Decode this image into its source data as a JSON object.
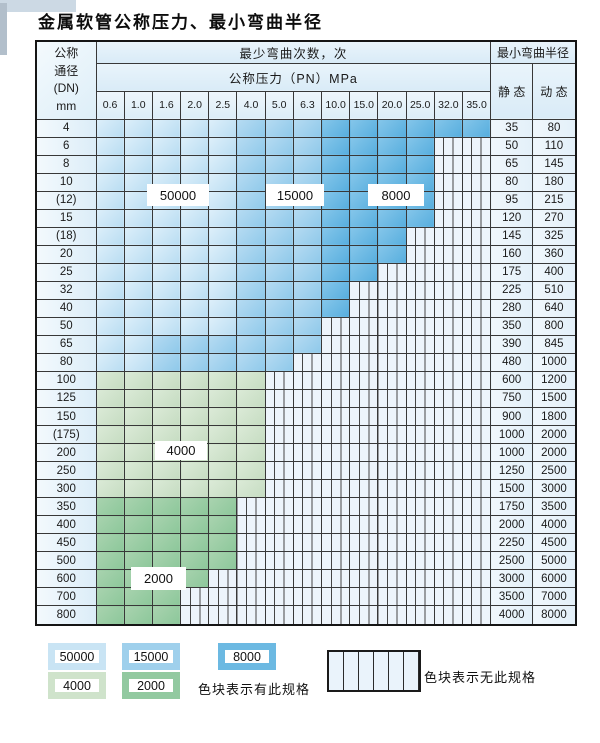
{
  "title": "金属软管公称压力、最小弯曲半径",
  "table": {
    "corner_lines": [
      "公称",
      "通径",
      "(DN)",
      "mm"
    ],
    "bend_cycles_header": "最少弯曲次数，次",
    "pressure_header": "公称压力（PN）MPa",
    "radius_header": "最小弯曲半径",
    "static_header": "静 态",
    "dynamic_header": "动 态",
    "pressures": [
      "0.6",
      "1.0",
      "1.6",
      "2.0",
      "2.5",
      "4.0",
      "5.0",
      "6.3",
      "10.0",
      "15.0",
      "20.0",
      "25.0",
      "32.0",
      "35.0"
    ],
    "rows": [
      {
        "dn": "4",
        "ratings": [
          "50000",
          "50000",
          "50000",
          "50000",
          "50000",
          "15000",
          "15000",
          "15000",
          "8000",
          "8000",
          "8000",
          "8000",
          "8000",
          "8000"
        ],
        "static": "35",
        "dynamic": "80"
      },
      {
        "dn": "6",
        "ratings": [
          "50000",
          "50000",
          "50000",
          "50000",
          "50000",
          "15000",
          "15000",
          "15000",
          "8000",
          "8000",
          "8000",
          "8000",
          "none",
          "none"
        ],
        "static": "50",
        "dynamic": "110"
      },
      {
        "dn": "8",
        "ratings": [
          "50000",
          "50000",
          "50000",
          "50000",
          "50000",
          "15000",
          "15000",
          "15000",
          "8000",
          "8000",
          "8000",
          "8000",
          "none",
          "none"
        ],
        "static": "65",
        "dynamic": "145"
      },
      {
        "dn": "10",
        "ratings": [
          "50000",
          "50000",
          "50000",
          "50000",
          "50000",
          "15000",
          "15000",
          "15000",
          "8000",
          "8000",
          "8000",
          "8000",
          "none",
          "none"
        ],
        "static": "80",
        "dynamic": "180"
      },
      {
        "dn": "(12)",
        "ratings": [
          "50000",
          "50000",
          "50000",
          "50000",
          "50000",
          "15000",
          "15000",
          "15000",
          "8000",
          "8000",
          "8000",
          "8000",
          "none",
          "none"
        ],
        "static": "95",
        "dynamic": "215"
      },
      {
        "dn": "15",
        "ratings": [
          "50000",
          "50000",
          "50000",
          "50000",
          "50000",
          "15000",
          "15000",
          "15000",
          "8000",
          "8000",
          "8000",
          "8000",
          "none",
          "none"
        ],
        "static": "120",
        "dynamic": "270"
      },
      {
        "dn": "(18)",
        "ratings": [
          "50000",
          "50000",
          "50000",
          "50000",
          "50000",
          "15000",
          "15000",
          "15000",
          "8000",
          "8000",
          "8000",
          "none",
          "none",
          "none"
        ],
        "static": "145",
        "dynamic": "325"
      },
      {
        "dn": "20",
        "ratings": [
          "50000",
          "50000",
          "50000",
          "50000",
          "50000",
          "15000",
          "15000",
          "15000",
          "8000",
          "8000",
          "8000",
          "none",
          "none",
          "none"
        ],
        "static": "160",
        "dynamic": "360"
      },
      {
        "dn": "25",
        "ratings": [
          "50000",
          "50000",
          "50000",
          "50000",
          "50000",
          "15000",
          "15000",
          "15000",
          "8000",
          "8000",
          "none",
          "none",
          "none",
          "none"
        ],
        "static": "175",
        "dynamic": "400"
      },
      {
        "dn": "32",
        "ratings": [
          "50000",
          "50000",
          "50000",
          "50000",
          "50000",
          "15000",
          "15000",
          "15000",
          "8000",
          "none",
          "none",
          "none",
          "none",
          "none"
        ],
        "static": "225",
        "dynamic": "510"
      },
      {
        "dn": "40",
        "ratings": [
          "50000",
          "50000",
          "50000",
          "50000",
          "50000",
          "15000",
          "15000",
          "15000",
          "8000",
          "none",
          "none",
          "none",
          "none",
          "none"
        ],
        "static": "280",
        "dynamic": "640"
      },
      {
        "dn": "50",
        "ratings": [
          "50000",
          "50000",
          "50000",
          "50000",
          "50000",
          "15000",
          "15000",
          "15000",
          "none",
          "none",
          "none",
          "none",
          "none",
          "none"
        ],
        "static": "350",
        "dynamic": "800"
      },
      {
        "dn": "65",
        "ratings": [
          "50000",
          "50000",
          "15000",
          "15000",
          "15000",
          "15000",
          "15000",
          "15000",
          "none",
          "none",
          "none",
          "none",
          "none",
          "none"
        ],
        "static": "390",
        "dynamic": "845"
      },
      {
        "dn": "80",
        "ratings": [
          "50000",
          "50000",
          "15000",
          "15000",
          "15000",
          "15000",
          "15000",
          "none",
          "none",
          "none",
          "none",
          "none",
          "none",
          "none"
        ],
        "static": "480",
        "dynamic": "1000"
      },
      {
        "dn": "100",
        "ratings": [
          "4000",
          "4000",
          "4000",
          "4000",
          "4000",
          "4000",
          "none",
          "none",
          "none",
          "none",
          "none",
          "none",
          "none",
          "none"
        ],
        "static": "600",
        "dynamic": "1200"
      },
      {
        "dn": "125",
        "ratings": [
          "4000",
          "4000",
          "4000",
          "4000",
          "4000",
          "4000",
          "none",
          "none",
          "none",
          "none",
          "none",
          "none",
          "none",
          "none"
        ],
        "static": "750",
        "dynamic": "1500"
      },
      {
        "dn": "150",
        "ratings": [
          "4000",
          "4000",
          "4000",
          "4000",
          "4000",
          "4000",
          "none",
          "none",
          "none",
          "none",
          "none",
          "none",
          "none",
          "none"
        ],
        "static": "900",
        "dynamic": "1800"
      },
      {
        "dn": "(175)",
        "ratings": [
          "4000",
          "4000",
          "4000",
          "4000",
          "4000",
          "4000",
          "none",
          "none",
          "none",
          "none",
          "none",
          "none",
          "none",
          "none"
        ],
        "static": "1000",
        "dynamic": "2000"
      },
      {
        "dn": "200",
        "ratings": [
          "4000",
          "4000",
          "4000",
          "4000",
          "4000",
          "4000",
          "none",
          "none",
          "none",
          "none",
          "none",
          "none",
          "none",
          "none"
        ],
        "static": "1000",
        "dynamic": "2000"
      },
      {
        "dn": "250",
        "ratings": [
          "4000",
          "4000",
          "4000",
          "4000",
          "4000",
          "4000",
          "none",
          "none",
          "none",
          "none",
          "none",
          "none",
          "none",
          "none"
        ],
        "static": "1250",
        "dynamic": "2500"
      },
      {
        "dn": "300",
        "ratings": [
          "4000",
          "4000",
          "4000",
          "4000",
          "4000",
          "4000",
          "none",
          "none",
          "none",
          "none",
          "none",
          "none",
          "none",
          "none"
        ],
        "static": "1500",
        "dynamic": "3000"
      },
      {
        "dn": "350",
        "ratings": [
          "2000",
          "2000",
          "2000",
          "2000",
          "2000",
          "none",
          "none",
          "none",
          "none",
          "none",
          "none",
          "none",
          "none",
          "none"
        ],
        "static": "1750",
        "dynamic": "3500"
      },
      {
        "dn": "400",
        "ratings": [
          "2000",
          "2000",
          "2000",
          "2000",
          "2000",
          "none",
          "none",
          "none",
          "none",
          "none",
          "none",
          "none",
          "none",
          "none"
        ],
        "static": "2000",
        "dynamic": "4000"
      },
      {
        "dn": "450",
        "ratings": [
          "2000",
          "2000",
          "2000",
          "2000",
          "2000",
          "none",
          "none",
          "none",
          "none",
          "none",
          "none",
          "none",
          "none",
          "none"
        ],
        "static": "2250",
        "dynamic": "4500"
      },
      {
        "dn": "500",
        "ratings": [
          "2000",
          "2000",
          "2000",
          "2000",
          "2000",
          "none",
          "none",
          "none",
          "none",
          "none",
          "none",
          "none",
          "none",
          "none"
        ],
        "static": "2500",
        "dynamic": "5000"
      },
      {
        "dn": "600",
        "ratings": [
          "2000",
          "2000",
          "2000",
          "2000",
          "none",
          "none",
          "none",
          "none",
          "none",
          "none",
          "none",
          "none",
          "none",
          "none"
        ],
        "static": "3000",
        "dynamic": "6000"
      },
      {
        "dn": "700",
        "ratings": [
          "2000",
          "2000",
          "2000",
          "none",
          "none",
          "none",
          "none",
          "none",
          "none",
          "none",
          "none",
          "none",
          "none",
          "none"
        ],
        "static": "3500",
        "dynamic": "7000"
      },
      {
        "dn": "800",
        "ratings": [
          "2000",
          "2000",
          "2000",
          "none",
          "none",
          "none",
          "none",
          "none",
          "none",
          "none",
          "none",
          "none",
          "none",
          "none"
        ],
        "static": "4000",
        "dynamic": "8000"
      }
    ]
  },
  "ratings": {
    "50000": {
      "color": "#b9ddf2",
      "light": "#ddeffa"
    },
    "15000": {
      "color": "#8fc9ea",
      "light": "#b6dbf2"
    },
    "8000": {
      "color": "#57aede",
      "light": "#85c6ea"
    },
    "4000": {
      "color": "#c5dcc1",
      "light": "#dbead7"
    },
    "2000": {
      "color": "#8cc79a",
      "light": "#a9d3af"
    }
  },
  "region_labels": [
    "50000",
    "15000",
    "8000",
    "4000",
    "2000"
  ],
  "legend": {
    "items": [
      {
        "label": "50000",
        "color": "#c9e4f4"
      },
      {
        "label": "15000",
        "color": "#9fd0ec"
      },
      {
        "label": "8000",
        "color": "#6cb9e2"
      },
      {
        "label": "4000",
        "color": "#cfe3cb"
      },
      {
        "label": "2000",
        "color": "#92c9a0"
      }
    ],
    "has_spec_text": "色块表示有此规格",
    "no_spec_text": "色块表示无此规格"
  }
}
